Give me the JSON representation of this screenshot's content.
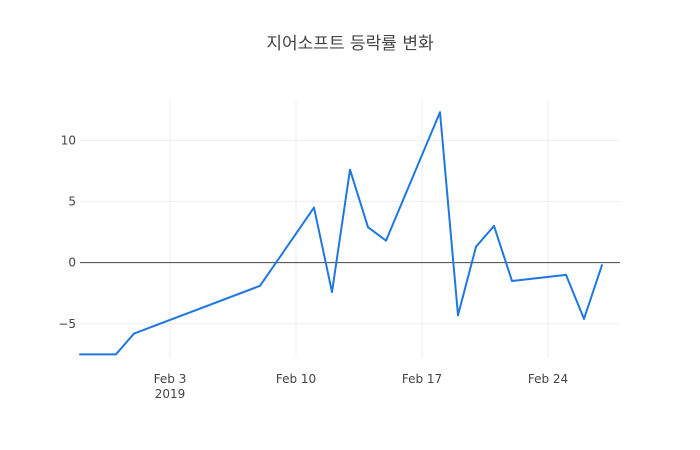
{
  "chart_data": {
    "type": "line",
    "title": "지어소프트 등락률 변화",
    "xlabel": "",
    "ylabel": "",
    "x_range": [
      "2019-01-29",
      "2019-02-28"
    ],
    "ylim": [
      -7.8,
      13.3
    ],
    "grid": true,
    "zero_line": true,
    "x_ticks": [
      {
        "date": "2019-02-03",
        "label": "Feb 3",
        "sublabel": "2019"
      },
      {
        "date": "2019-02-10",
        "label": "Feb 10"
      },
      {
        "date": "2019-02-17",
        "label": "Feb 17"
      },
      {
        "date": "2019-02-24",
        "label": "Feb 24"
      }
    ],
    "y_ticks": [
      {
        "value": 10,
        "label": "10"
      },
      {
        "value": 5,
        "label": "5"
      },
      {
        "value": 0,
        "label": "0"
      },
      {
        "value": -5,
        "label": "−5"
      }
    ],
    "series": [
      {
        "color": "#1f77e0",
        "x": [
          "2019-01-29",
          "2019-01-31",
          "2019-02-01",
          "2019-02-08",
          "2019-02-11",
          "2019-02-12",
          "2019-02-13",
          "2019-02-14",
          "2019-02-15",
          "2019-02-18",
          "2019-02-19",
          "2019-02-20",
          "2019-02-21",
          "2019-02-22",
          "2019-02-25",
          "2019-02-26",
          "2019-02-27"
        ],
        "y": [
          -7.5,
          -7.5,
          -5.8,
          -1.9,
          4.5,
          -2.4,
          7.6,
          2.9,
          1.8,
          12.3,
          -4.3,
          1.3,
          3.0,
          -1.5,
          -1.0,
          -4.6,
          -0.2
        ]
      }
    ]
  }
}
